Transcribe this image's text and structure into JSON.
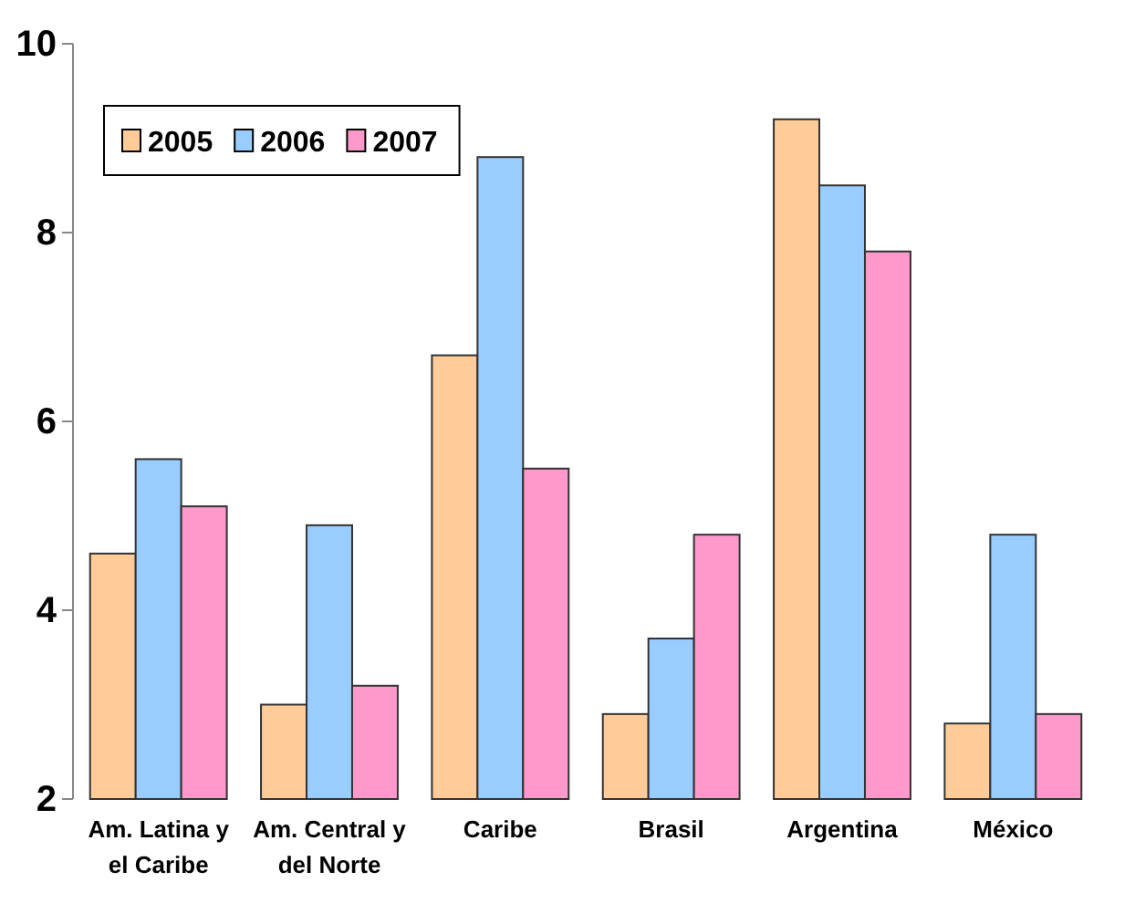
{
  "chart_data": {
    "type": "bar",
    "categories": [
      "Am. Latina y el Caribe",
      "Am. Central y del Norte",
      "Caribe",
      "Brasil",
      "Argentina",
      "México"
    ],
    "series": [
      {
        "name": "2005",
        "color": "#ffcc99",
        "values": [
          4.6,
          3.0,
          6.7,
          2.9,
          9.2,
          2.8
        ]
      },
      {
        "name": "2006",
        "color": "#99ccff",
        "values": [
          5.6,
          4.9,
          8.8,
          3.7,
          8.5,
          4.8
        ]
      },
      {
        "name": "2007",
        "color": "#ff99cc",
        "values": [
          5.1,
          3.2,
          5.5,
          4.8,
          7.8,
          2.9
        ]
      }
    ],
    "ylim": [
      2,
      10
    ],
    "yticks": [
      2,
      4,
      6,
      8,
      10
    ],
    "legend": "top left"
  }
}
